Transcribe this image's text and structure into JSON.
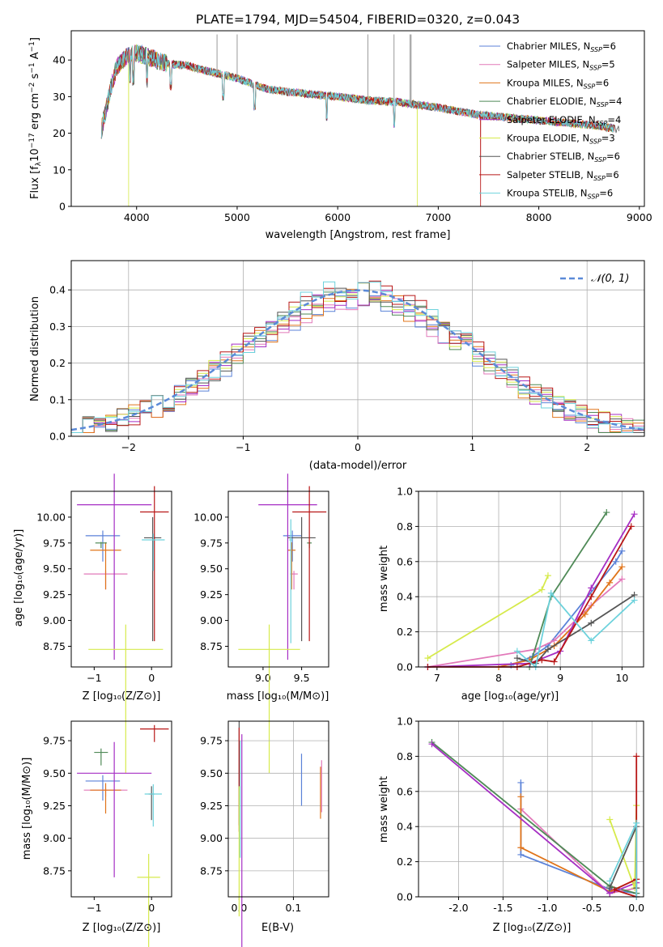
{
  "colors": {
    "Chabrier MILES": "#5b82d8",
    "Salpeter MILES": "#e278b9",
    "Kroupa MILES": "#e0741a",
    "Chabrier ELODIE": "#4f8a57",
    "Salpeter ELODIE": "#a62fc4",
    "Kroupa ELODIE": "#d6ea4b",
    "Chabrier STELIB": "#555555",
    "Salpeter STELIB": "#b81717",
    "Kroupa STELIB": "#6dd2dc",
    "grid": "#b0b0b0",
    "gauss": "#5b8ad8"
  },
  "spectrum": {
    "title": "PLATE=1794, MJD=54504, FIBERID=0320, z=0.043",
    "xlabel": "wavelength [Angstrom, rest frame]",
    "ylabel": "Flux [fλ10⁻¹⁷ erg cm⁻² s⁻¹ A⁻¹]",
    "legend": [
      {
        "label": "Chabrier MILES, N",
        "sub": "SSP",
        "tail": "=6"
      },
      {
        "label": "Salpeter MILES, N",
        "sub": "SSP",
        "tail": "=5"
      },
      {
        "label": "Kroupa MILES, N",
        "sub": "SSP",
        "tail": "=6"
      },
      {
        "label": "Chabrier ELODIE, N",
        "sub": "SSP",
        "tail": "=4"
      },
      {
        "label": "Salpeter ELODIE, N",
        "sub": "SSP",
        "tail": "=4"
      },
      {
        "label": "Kroupa ELODIE, N",
        "sub": "SSP",
        "tail": "=3"
      },
      {
        "label": "Chabrier STELIB, N",
        "sub": "SSP",
        "tail": "=6"
      },
      {
        "label": "Salpeter STELIB, N",
        "sub": "SSP",
        "tail": "=6"
      },
      {
        "label": "Kroupa STELIB, N",
        "sub": "SSP",
        "tail": "=6"
      }
    ]
  },
  "residuals": {
    "xlabel": "(data-model)/error",
    "ylabel": "Normed distribution",
    "legend": "𝒩(0, 1)"
  },
  "labels": {
    "age": "age  [log₁₀(age/yr)]",
    "Z": "Z [log₁₀(Z/Z⊙)]",
    "mass": "mass [log₁₀(M/M⊙)]",
    "ebv": "E(B-V)",
    "weight": "mass weight"
  },
  "chart_data": [
    {
      "type": "line",
      "title": "PLATE=1794, MJD=54504, FIBERID=0320, z=0.043",
      "xlabel": "wavelength [Angstrom, rest frame]",
      "ylabel": "Flux [fλ10^-17 erg cm^-2 s^-1 A^-1]",
      "xlim": [
        3350,
        9050
      ],
      "ylim": [
        0,
        48
      ],
      "xticks": [
        4000,
        5000,
        6000,
        7000,
        8000,
        9000
      ],
      "yticks": [
        0,
        10,
        20,
        30,
        40
      ],
      "data_range": [
        3650,
        8800
      ],
      "shape_x": [
        3650,
        3700,
        3750,
        3800,
        3900,
        4000,
        4100,
        4300,
        4500,
        4700,
        5000,
        5300,
        5600,
        6000,
        6300,
        6600,
        7000,
        7400,
        7800,
        8200,
        8600,
        8800
      ],
      "shape_y": [
        21,
        27,
        33,
        38,
        41,
        42,
        41,
        39,
        38.5,
        37,
        35,
        32,
        31,
        30,
        29,
        28.5,
        27,
        25,
        24,
        23,
        22,
        21
      ],
      "drops": [
        {
          "series": "Kroupa ELODIE",
          "x": 6790
        },
        {
          "series": "Salpeter STELIB",
          "x": 7420
        },
        {
          "series": "Kroupa ELODIE",
          "x": 3920
        }
      ],
      "spikes_x": [
        4800,
        5000,
        6300,
        6560,
        6720,
        6730
      ]
    },
    {
      "type": "line",
      "xlabel": "(data-model)/error",
      "ylabel": "Normed distribution",
      "xlim": [
        -2.5,
        2.5
      ],
      "ylim": [
        0,
        0.48
      ],
      "xticks": [
        -2,
        -1,
        0,
        1,
        2
      ],
      "yticks": [
        0.0,
        0.1,
        0.2,
        0.3,
        0.4
      ],
      "gaussian": "N(0,1)",
      "histogram_bin_width": 0.1
    },
    {
      "type": "scatter",
      "xlabel": "Z [log10(Z/Zsun)]",
      "ylabel": "age [log10(age/yr)]",
      "xlim": [
        -1.4,
        0.35
      ],
      "ylim": [
        8.55,
        10.25
      ],
      "xticks": [
        -1,
        0
      ],
      "yticks": [
        8.75,
        9.0,
        9.25,
        9.5,
        9.75,
        10.0
      ],
      "points": [
        {
          "series": "Chabrier MILES",
          "x": -0.85,
          "y": 9.82,
          "xerr": 0.3,
          "yerr": 0.25
        },
        {
          "series": "Salpeter MILES",
          "x": -0.8,
          "y": 9.45,
          "xerr": 0.38,
          "yerr": 0.15
        },
        {
          "series": "Kroupa MILES",
          "x": -0.8,
          "y": 9.68,
          "xerr": 0.27,
          "yerr": 0.38
        },
        {
          "series": "Chabrier ELODIE",
          "x": -0.88,
          "y": 9.75,
          "xerr": 0.1,
          "yerr": 0.05
        },
        {
          "series": "Salpeter ELODIE",
          "x": -0.65,
          "y": 10.12,
          "xerr": 0.65,
          "yerr": 1.5
        },
        {
          "series": "Kroupa ELODIE",
          "x": -0.45,
          "y": 8.72,
          "xerr": 0.65,
          "yerr": 1.2
        },
        {
          "series": "Chabrier STELIB",
          "x": 0.02,
          "y": 9.8,
          "xerr": 0.15,
          "yerr": 1.0
        },
        {
          "series": "Salpeter STELIB",
          "x": 0.05,
          "y": 10.05,
          "xerr": 0.25,
          "yerr": 1.25
        },
        {
          "series": "Kroupa STELIB",
          "x": 0.03,
          "y": 9.78,
          "xerr": 0.2,
          "yerr": 0.3
        }
      ]
    },
    {
      "type": "scatter",
      "xlabel": "mass [log10(M/Msun)]",
      "ylabel": "",
      "xlim": [
        8.55,
        9.85
      ],
      "ylim": [
        8.55,
        10.25
      ],
      "xticks": [
        9.0,
        9.5
      ],
      "yticks": [
        8.75,
        9.0,
        9.25,
        9.5,
        9.75,
        10.0
      ]
    },
    {
      "type": "line",
      "xlabel": "age [log10(age/yr)]",
      "ylabel": "mass weight",
      "xlim": [
        6.7,
        10.35
      ],
      "ylim": [
        0,
        1.0
      ],
      "xticks": [
        7,
        8,
        9,
        10
      ],
      "yticks": [
        0.0,
        0.2,
        0.4,
        0.6,
        0.8,
        1.0
      ],
      "series": [
        {
          "name": "Chabrier MILES",
          "x": [
            8.2,
            8.55,
            8.8,
            9.9,
            10.0
          ],
          "y": [
            0.01,
            0.06,
            0.12,
            0.6,
            0.66
          ]
        },
        {
          "name": "Salpeter MILES",
          "x": [
            6.85,
            8.6,
            8.9,
            9.5,
            10.0
          ],
          "y": [
            0.0,
            0.1,
            0.15,
            0.35,
            0.5
          ]
        },
        {
          "name": "Kroupa MILES",
          "x": [
            8.0,
            8.5,
            8.9,
            9.4,
            9.8,
            10.0
          ],
          "y": [
            0.0,
            0.04,
            0.12,
            0.3,
            0.48,
            0.57
          ]
        },
        {
          "name": "Chabrier ELODIE",
          "x": [
            8.5,
            8.85,
            9.75
          ],
          "y": [
            0.0,
            0.4,
            0.88
          ]
        },
        {
          "name": "Salpeter ELODIE",
          "x": [
            6.85,
            8.5,
            9.0,
            9.5,
            10.2
          ],
          "y": [
            0.0,
            0.02,
            0.09,
            0.45,
            0.87
          ]
        },
        {
          "name": "Kroupa ELODIE",
          "x": [
            6.85,
            8.7,
            8.8
          ],
          "y": [
            0.05,
            0.44,
            0.52
          ]
        },
        {
          "name": "Chabrier STELIB",
          "x": [
            8.3,
            8.6,
            8.8,
            9.5,
            10.2
          ],
          "y": [
            0.05,
            0.02,
            0.1,
            0.25,
            0.41
          ]
        },
        {
          "name": "Salpeter STELIB",
          "x": [
            6.85,
            8.3,
            8.7,
            8.9,
            9.5,
            10.15
          ],
          "y": [
            0.0,
            0.0,
            0.04,
            0.03,
            0.4,
            0.8
          ]
        },
        {
          "name": "Kroupa STELIB",
          "x": [
            8.3,
            8.6,
            8.85,
            9.5,
            10.2
          ],
          "y": [
            0.09,
            0.0,
            0.42,
            0.15,
            0.38
          ]
        }
      ]
    },
    {
      "type": "scatter",
      "xlabel": "Z [log10(Z/Zsun)]",
      "ylabel": "mass [log10(M/Msun)]",
      "xlim": [
        -1.4,
        0.35
      ],
      "ylim": [
        8.55,
        9.9
      ],
      "xticks": [
        -1,
        0
      ],
      "yticks": [
        8.75,
        9.0,
        9.25,
        9.5,
        9.75
      ]
    },
    {
      "type": "scatter",
      "xlabel": "E(B-V)",
      "ylabel": "",
      "xlim": [
        -0.02,
        0.165
      ],
      "ylim": [
        8.55,
        9.9
      ],
      "xticks": [
        0.0,
        0.1
      ],
      "yticks": [
        8.75,
        9.0,
        9.25,
        9.5,
        9.75
      ]
    },
    {
      "type": "line",
      "xlabel": "Z [log10(Z/Zsun)]",
      "ylabel": "mass weight",
      "xlim": [
        -2.45,
        0.08
      ],
      "ylim": [
        0,
        1.0
      ],
      "xticks": [
        -2.0,
        -1.5,
        -1.0,
        -0.5,
        0.0
      ],
      "yticks": [
        0.0,
        0.2,
        0.4,
        0.6,
        0.8,
        1.0
      ],
      "series": [
        {
          "name": "Chabrier MILES",
          "x": [
            -1.3,
            -1.3,
            -0.28,
            0.0
          ],
          "y": [
            0.65,
            0.24,
            0.04,
            0.02
          ]
        },
        {
          "name": "Salpeter MILES",
          "x": [
            -1.3,
            -0.3,
            0.0
          ],
          "y": [
            0.5,
            0.02,
            0.05
          ]
        },
        {
          "name": "Kroupa MILES",
          "x": [
            -1.3,
            -1.3,
            -0.3,
            0.0
          ],
          "y": [
            0.57,
            0.28,
            0.03,
            0.1
          ]
        },
        {
          "name": "Chabrier ELODIE",
          "x": [
            -2.3,
            -0.3,
            0.0
          ],
          "y": [
            0.88,
            0.06,
            0.02
          ]
        },
        {
          "name": "Salpeter ELODIE",
          "x": [
            -2.3,
            -0.3,
            0.0
          ],
          "y": [
            0.87,
            0.02,
            0.08
          ]
        },
        {
          "name": "Kroupa ELODIE",
          "x": [
            -0.3,
            -0.02,
            0.0
          ],
          "y": [
            0.44,
            0.05,
            0.52
          ]
        },
        {
          "name": "Chabrier STELIB",
          "x": [
            -0.3,
            0.0,
            0.0
          ],
          "y": [
            0.05,
            0.4,
            0.05
          ]
        },
        {
          "name": "Salpeter STELIB",
          "x": [
            0.0,
            0.0,
            -0.25,
            0.0
          ],
          "y": [
            0.8,
            0.0,
            0.04,
            0.1
          ]
        },
        {
          "name": "Kroupa STELIB",
          "x": [
            -0.3,
            0.0,
            0.0
          ],
          "y": [
            0.09,
            0.42,
            0.0
          ]
        }
      ]
    }
  ]
}
